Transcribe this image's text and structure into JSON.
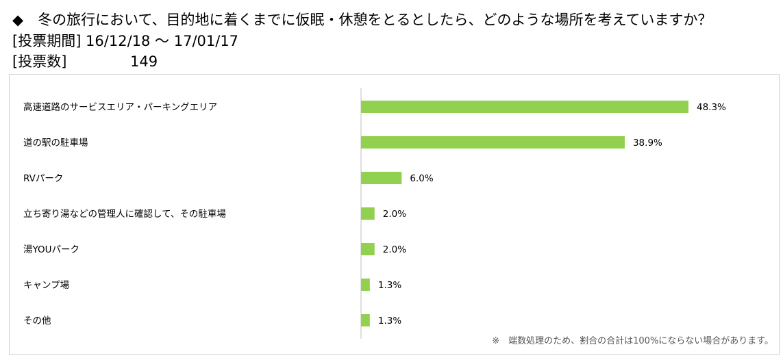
{
  "header": {
    "question": "◆　冬の旅行において、目的地に着くまでに仮眠・休憩をとるとしたら、どのような場所を考えていますか？",
    "period_label": "[投票期間] 16/12/18 ～ 17/01/17",
    "count_label": "[投票数]",
    "count_value": "149"
  },
  "chart_data": {
    "type": "bar",
    "orientation": "horizontal",
    "categories": [
      "高速道路のサービスエリア・パーキングエリア",
      "道の駅の駐車場",
      "RVパーク",
      "立ち寄り湯などの管理人に確認して、その駐車場",
      "湯YOUパーク",
      "キャンプ場",
      "その他"
    ],
    "values": [
      48.3,
      38.9,
      6.0,
      2.0,
      2.0,
      1.3,
      1.3
    ],
    "value_labels": [
      "48.3%",
      "38.9%",
      "6.0%",
      "2.0%",
      "2.0%",
      "1.3%",
      "1.3%"
    ],
    "unit": "%",
    "xlim": [
      0,
      55
    ],
    "bar_color": "#92d050",
    "grid": false,
    "legend": "none",
    "footnote": "※　端数処理のため、割合の合計は100%にならない場合があります。"
  }
}
